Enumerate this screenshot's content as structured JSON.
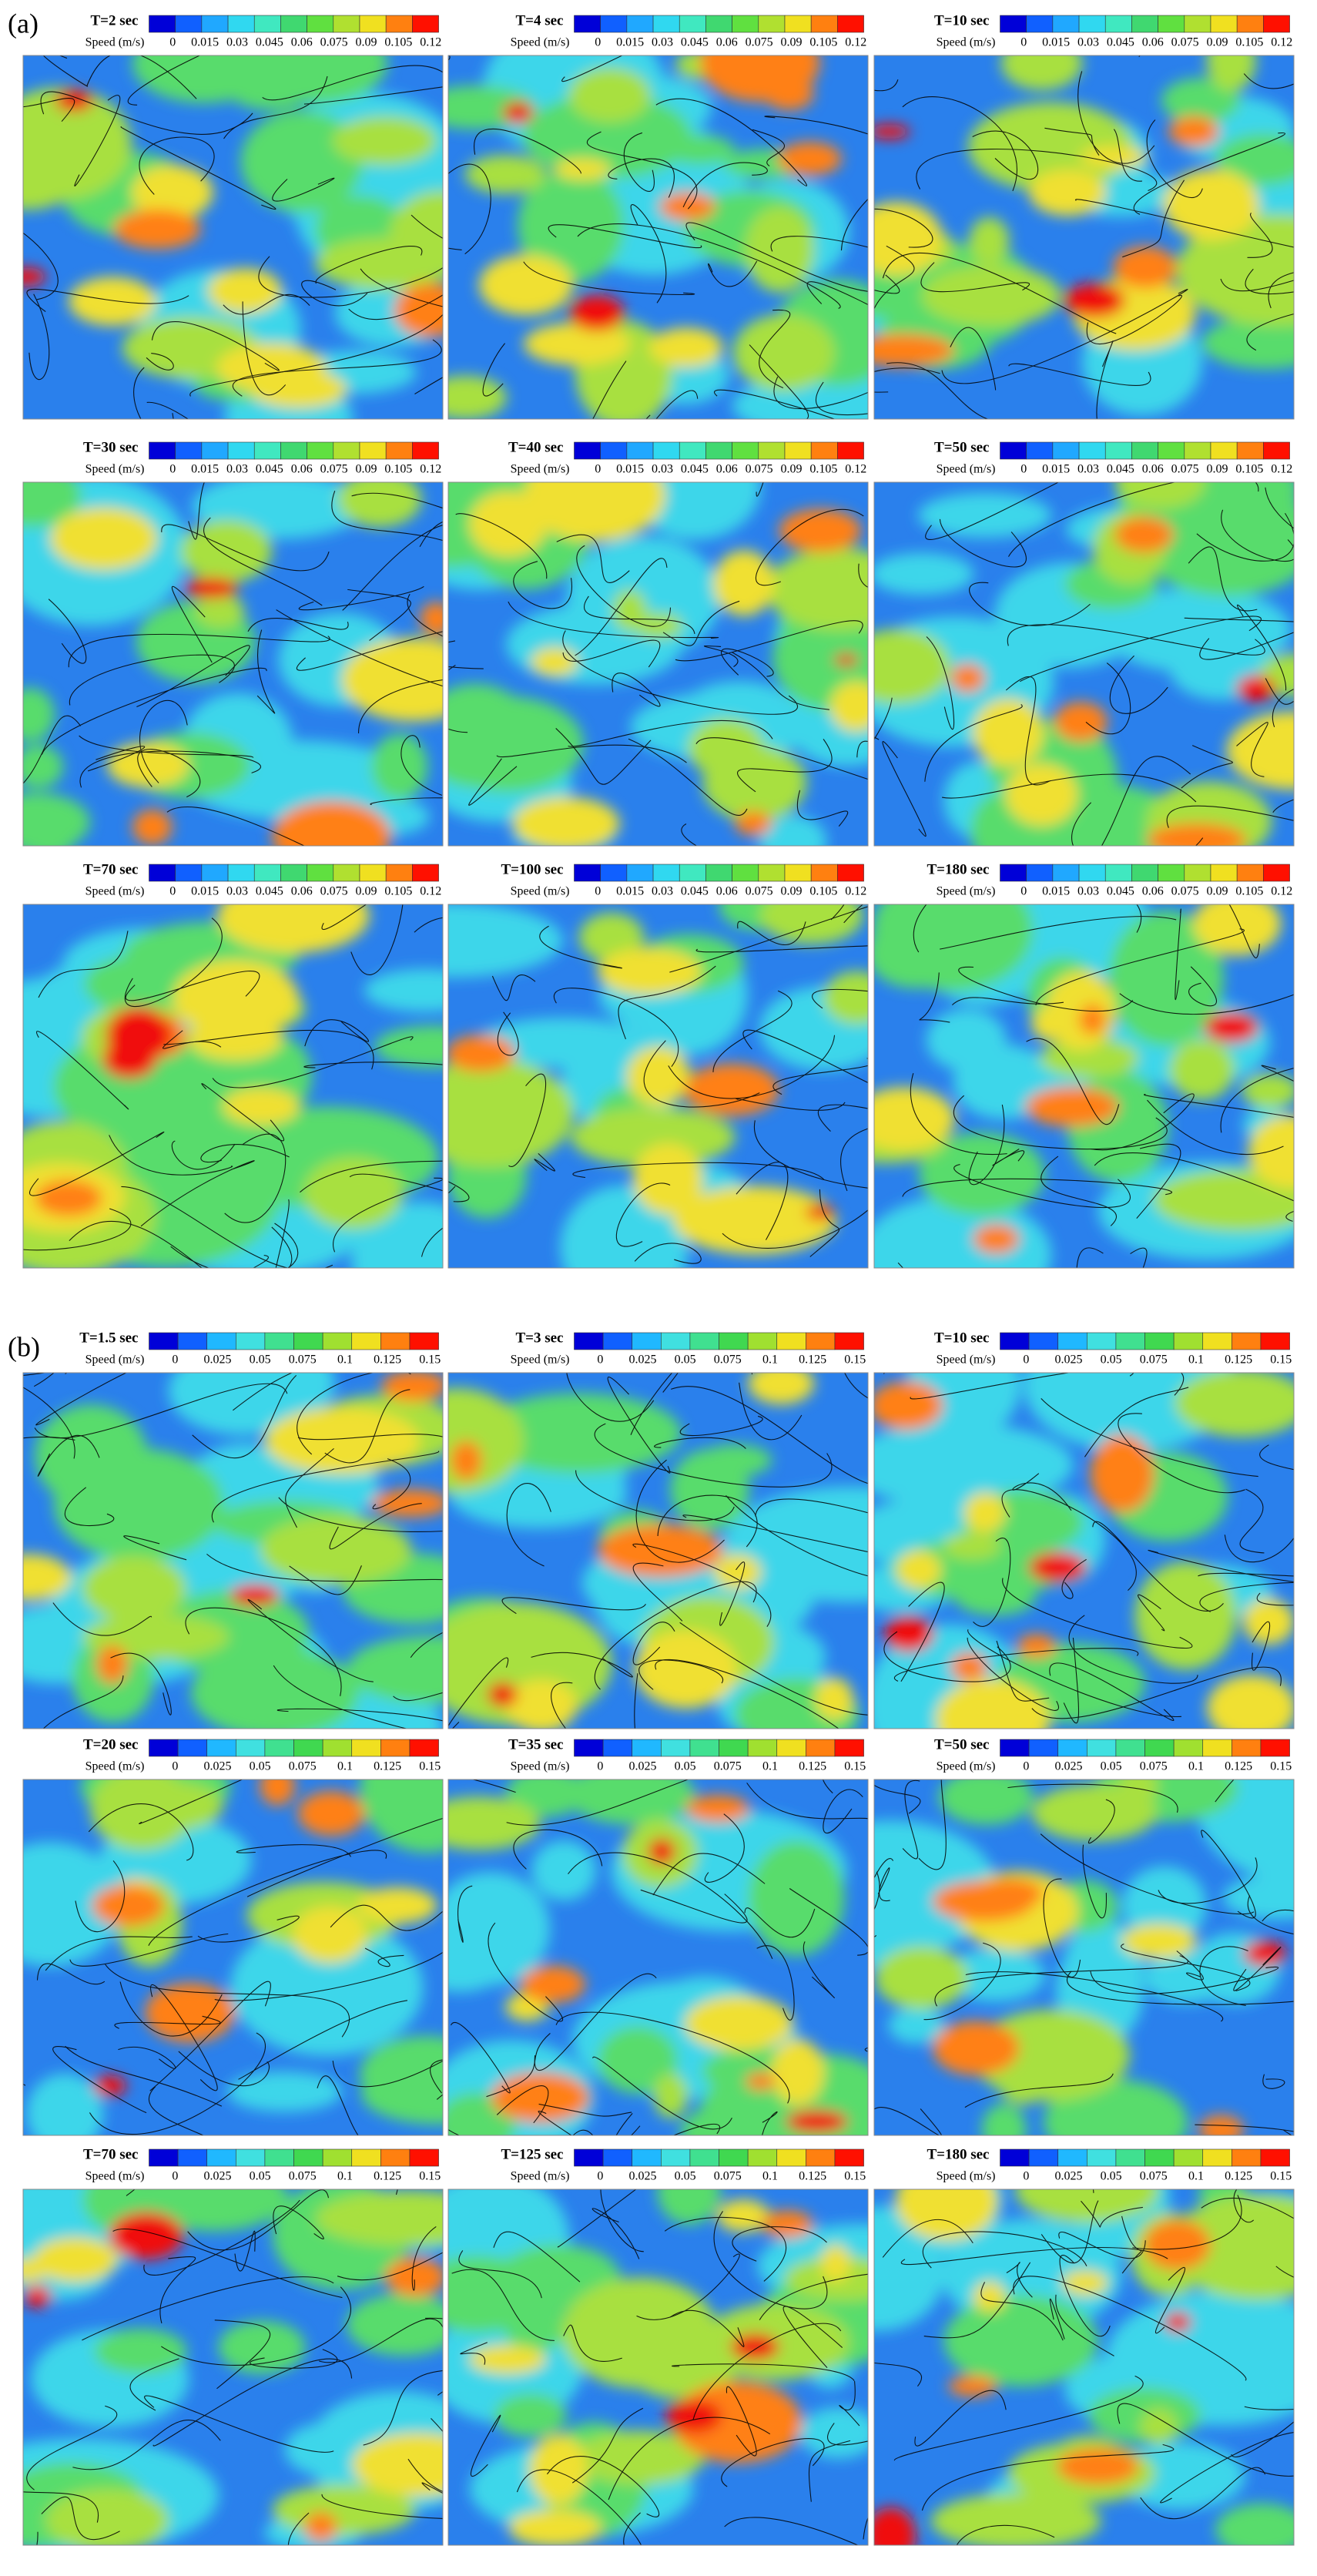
{
  "parts": [
    {
      "label": "(a)",
      "colorbar": {
        "title": "Speed (m/s)",
        "ticks": [
          "0",
          "0.015",
          "0.03",
          "0.045",
          "0.06",
          "0.075",
          "0.09",
          "0.105",
          "0.12"
        ]
      },
      "panels": [
        {
          "time": "T=2 sec"
        },
        {
          "time": "T=4 sec"
        },
        {
          "time": "T=10 sec"
        },
        {
          "time": "T=30 sec"
        },
        {
          "time": "T=40 sec"
        },
        {
          "time": "T=50 sec"
        },
        {
          "time": "T=70 sec"
        },
        {
          "time": "T=100 sec"
        },
        {
          "time": "T=180 sec"
        }
      ]
    },
    {
      "label": "(b)",
      "colorbar": {
        "title": "Speed (m/s)",
        "ticks": [
          "0",
          "0.025",
          "0.05",
          "0.075",
          "0.1",
          "0.125",
          "0.15"
        ]
      },
      "panels": [
        {
          "time": "T=1.5 sec"
        },
        {
          "time": "T=3 sec"
        },
        {
          "time": "T=10 sec"
        },
        {
          "time": "T=20 sec"
        },
        {
          "time": "T=35 sec"
        },
        {
          "time": "T=50 sec"
        },
        {
          "time": "T=70 sec"
        },
        {
          "time": "T=125 sec"
        },
        {
          "time": "T=180 sec"
        }
      ]
    }
  ]
}
